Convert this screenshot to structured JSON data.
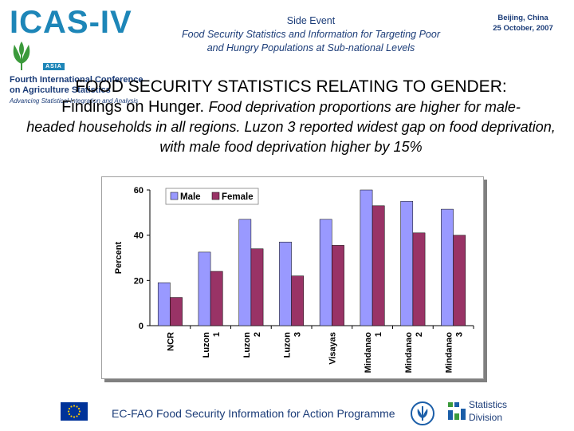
{
  "header": {
    "logo_wordmark": "ICAS-IV",
    "logo_badge": "ASIA",
    "conference_line1": "Fourth International Conference",
    "conference_line2": "on Agriculture Statistics",
    "tagline": "Advancing Statistical Integration and Analysis",
    "event_label": "Side Event",
    "event_title_line1": "Food Security Statistics and Information for Targeting Poor",
    "event_title_line2": "and Hungry Populations at Sub-national Levels",
    "place": "Beijing, China",
    "date": "25 October, 2007"
  },
  "heading": {
    "title": "FOOD SECURITY STATISTICS RELATING TO GENDER",
    "title_colon": ":",
    "lead": "Findings on Hunger.",
    "lead_rest": "Food deprivation proportions are higher for male-",
    "body": "headed households in all regions. Luzon 3 reported  widest gap on food deprivation, with male food deprivation higher by 15%"
  },
  "chart_data": {
    "type": "bar",
    "categories": [
      "NCR",
      "Luzon 1",
      "Luzon 2",
      "Luzon 3",
      "Visayas",
      "Mindanao 1",
      "Mindanao 2",
      "Mindanao 3"
    ],
    "series": [
      {
        "name": "Male",
        "values": [
          19,
          32.5,
          47,
          37,
          47,
          60,
          55,
          51.5
        ],
        "color": "#9999ff"
      },
      {
        "name": "Female",
        "values": [
          12.5,
          24,
          34,
          22,
          35.5,
          53,
          41,
          40
        ],
        "color": "#993366"
      }
    ],
    "ylabel": "Percent",
    "yticks": [
      0,
      20,
      40,
      60
    ],
    "ylim": [
      0,
      60
    ],
    "legend": "top-left",
    "grid": false
  },
  "footer": {
    "programme": "EC-FAO Food Security Information for Action Programme",
    "stat_line1": "Statistics",
    "stat_line2": "Division"
  },
  "colors": {
    "accent": "#1d86b8",
    "navy": "#1b3c78",
    "logo_green": "#3b9a3b"
  }
}
